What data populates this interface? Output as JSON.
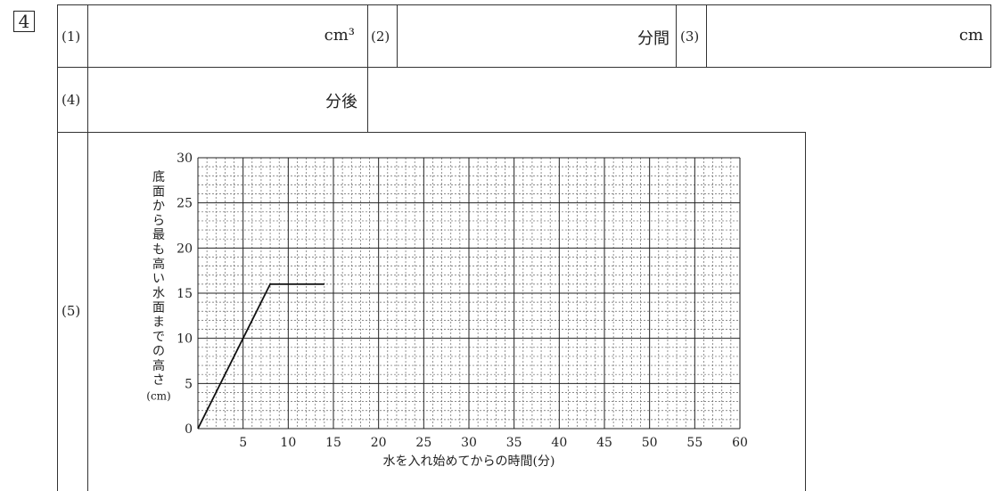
{
  "question_number": "4",
  "answers": [
    {
      "label": "(1)",
      "unit": "cm³"
    },
    {
      "label": "(2)",
      "unit": "分間"
    },
    {
      "label": "(3)",
      "unit": "cm"
    },
    {
      "label": "(4)",
      "unit": "分後"
    },
    {
      "label": "(5)"
    }
  ],
  "chart_data": {
    "type": "line",
    "xlabel": "水を入れ始めてからの時間(分)",
    "ylabel": "底面から最も高い水面までの高さ",
    "ylabel_unit": "(cm)",
    "xlim": [
      0,
      60
    ],
    "ylim": [
      0,
      30
    ],
    "x_ticks": [
      "5",
      "10",
      "15",
      "20",
      "25",
      "30",
      "35",
      "40",
      "45",
      "50",
      "55",
      "60"
    ],
    "y_ticks": [
      "0",
      "5",
      "10",
      "15",
      "20",
      "25",
      "30"
    ],
    "grid": true,
    "series": [
      {
        "x": [
          0,
          8,
          14
        ],
        "y": [
          0,
          16,
          16
        ]
      }
    ]
  }
}
